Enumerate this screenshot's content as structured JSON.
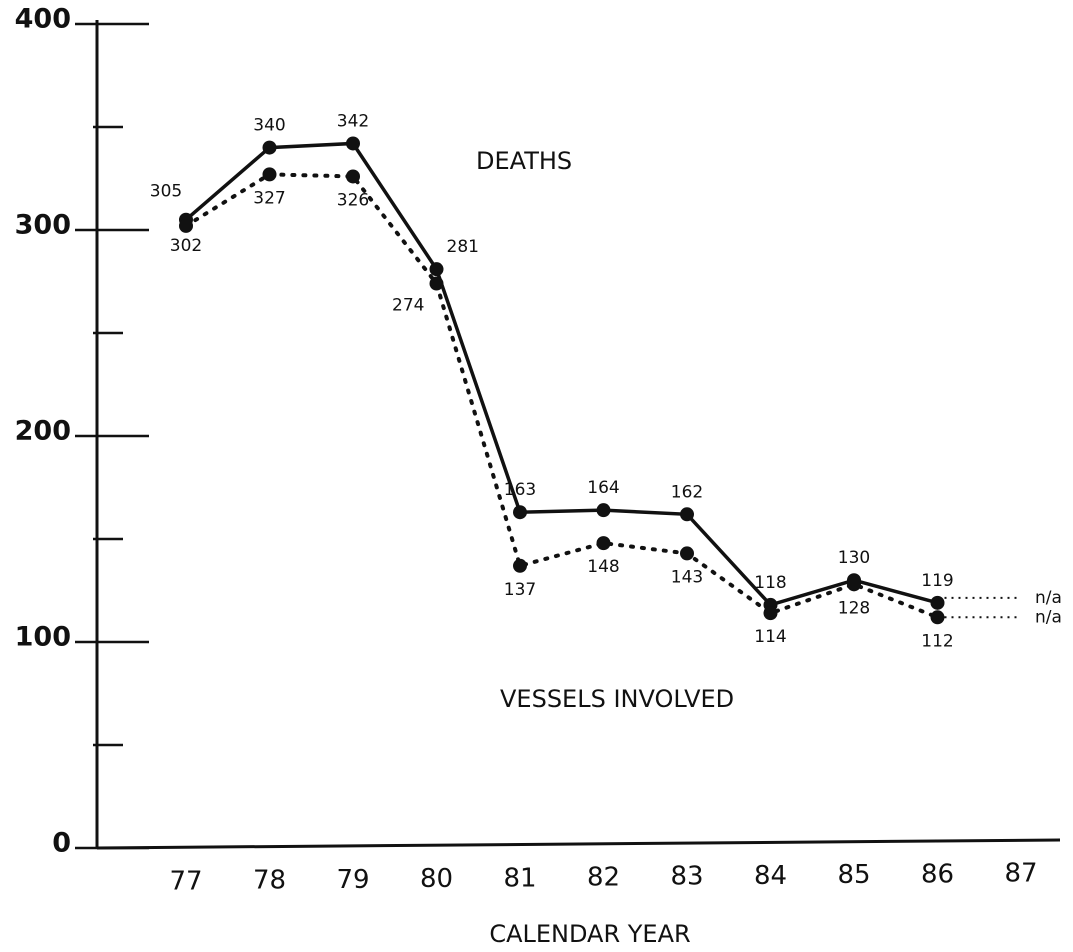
{
  "chart_data": {
    "type": "line",
    "x_label": "CALENDAR YEAR",
    "annotations": [
      "DEATHS",
      "VESSELS INVOLVED"
    ],
    "categories": [
      "77",
      "78",
      "79",
      "80",
      "81",
      "82",
      "83",
      "84",
      "85",
      "86",
      "87"
    ],
    "series": [
      {
        "name": "DEATHS",
        "color": "#111111",
        "style": "solid",
        "values": [
          305,
          340,
          342,
          281,
          163,
          164,
          162,
          118,
          130,
          119,
          null
        ],
        "value_labels": [
          "305",
          "340",
          "342",
          "281",
          "163",
          "164",
          "162",
          "118",
          "130",
          "119",
          "n/a"
        ]
      },
      {
        "name": "VESSELS INVOLVED",
        "color": "#111111",
        "style": "dotted",
        "values": [
          302,
          327,
          326,
          274,
          137,
          148,
          143,
          114,
          128,
          112,
          null
        ],
        "value_labels": [
          "302",
          "327",
          "326",
          "274",
          "137",
          "148",
          "143",
          "114",
          "128",
          "112",
          "n/a"
        ]
      }
    ],
    "ylim": [
      0,
      400
    ],
    "yticks": [
      0,
      100,
      200,
      300,
      400
    ],
    "minor_yticks": [
      50,
      150,
      250,
      350
    ]
  }
}
